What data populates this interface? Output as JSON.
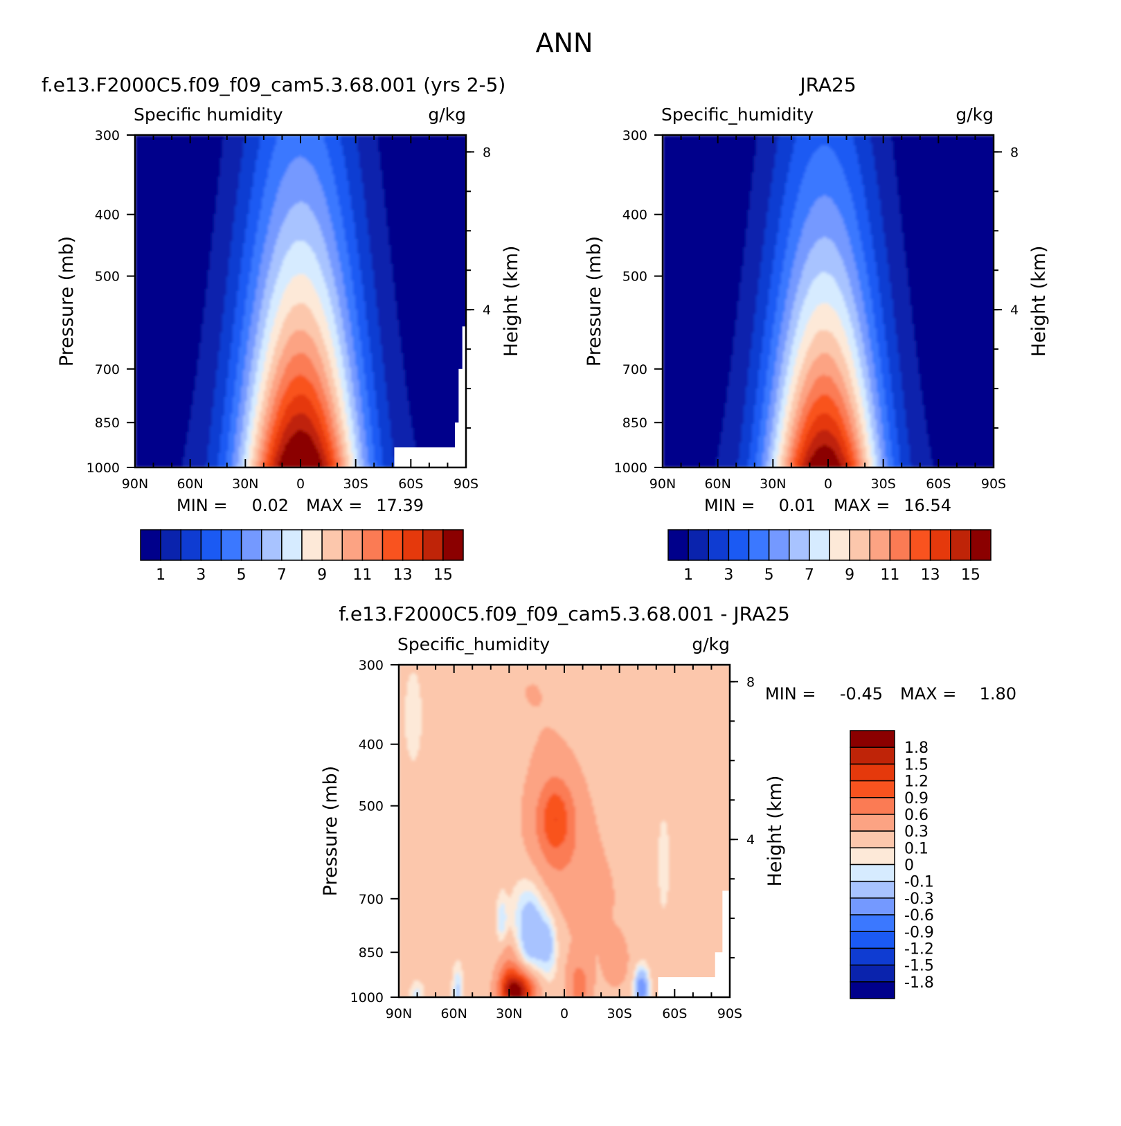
{
  "page": {
    "title": "ANN"
  },
  "colors": {
    "abs_scale": [
      "#00008b",
      "#0a23ad",
      "#0f3cd2",
      "#1b5af3",
      "#3b78ff",
      "#7499ff",
      "#a8c3ff",
      "#d6ebff",
      "#fde9d8",
      "#fcc7ac",
      "#fca383",
      "#fb7b54",
      "#f9531f",
      "#e5390c",
      "#bf2408",
      "#8b0000"
    ],
    "diff_scale": [
      "#00008b",
      "#0a23ad",
      "#0f3cd2",
      "#1b5af3",
      "#3b78ff",
      "#7499ff",
      "#a8c3ff",
      "#d6ebff",
      "#fde9d8",
      "#fcc7ac",
      "#fca383",
      "#fb7b54",
      "#f9531f",
      "#e5390c",
      "#bf2408",
      "#8b0000"
    ],
    "missing": "#ffffff"
  },
  "chart_data": [
    {
      "type": "heatmap",
      "title": "f.e13.F2000C5.f09_f09_cam5.3.68.001 (yrs 2-5)",
      "subtitle_left": "Specific humidity",
      "subtitle_right": "g/kg",
      "ylabel": "Pressure (mb)",
      "y2label": "Height (km)",
      "x_ticks": [
        "90N",
        "60N",
        "30N",
        "0",
        "30S",
        "60S",
        "90S"
      ],
      "y_ticks": [
        "300",
        "400",
        "500",
        "700",
        "850",
        "1000"
      ],
      "y2_ticks": [
        "8",
        "4"
      ],
      "stats": {
        "min_label": "MIN =",
        "min": "0.02",
        "max_label": "MAX =",
        "max": "17.39"
      },
      "colorbar_labels": [
        "1",
        "3",
        "5",
        "7",
        "9",
        "11",
        "13",
        "15"
      ],
      "peak": 17.39,
      "peak_lat": 0,
      "width": 32,
      "height": 0.9,
      "ymin": 0.02,
      "has_missing": true
    },
    {
      "type": "heatmap",
      "title": "JRA25",
      "subtitle_left": "Specific_humidity",
      "subtitle_right": "g/kg",
      "ylabel": "Pressure (mb)",
      "y2label": "Height (km)",
      "x_ticks": [
        "90N",
        "60N",
        "30N",
        "0",
        "30S",
        "60S",
        "90S"
      ],
      "y_ticks": [
        "300",
        "400",
        "500",
        "700",
        "850",
        "1000"
      ],
      "y2_ticks": [
        "8",
        "4"
      ],
      "stats": {
        "min_label": "MIN =",
        "min": "0.01",
        "max_label": "MAX =",
        "max": "16.54"
      },
      "colorbar_labels": [
        "1",
        "3",
        "5",
        "7",
        "9",
        "11",
        "13",
        "15"
      ],
      "peak": 16.54,
      "peak_lat": 2,
      "width": 30,
      "height": 0.82,
      "ymin": 0.01,
      "has_missing": false
    },
    {
      "type": "heatmap",
      "title": "f.e13.F2000C5.f09_f09_cam5.3.68.001 - JRA25",
      "subtitle_left": "Specific_humidity",
      "subtitle_right": "g/kg",
      "ylabel": "Pressure (mb)",
      "y2label": "Height (km)",
      "x_ticks": [
        "90N",
        "60N",
        "30N",
        "0",
        "30S",
        "60S",
        "90S"
      ],
      "y_ticks": [
        "300",
        "400",
        "500",
        "700",
        "850",
        "1000"
      ],
      "y2_ticks": [
        "8",
        "4"
      ],
      "stats": {
        "min_label": "MIN =",
        "min": "-0.45",
        "max_label": "MAX =",
        "max": "1.80"
      },
      "colorbar_labels": [
        "1.8",
        "1.5",
        "1.2",
        "0.9",
        "0.6",
        "0.3",
        "0.1",
        "0",
        "-0.1",
        "-0.3",
        "-0.6",
        "-0.9",
        "-1.2",
        "-1.5",
        "-1.8"
      ]
    }
  ]
}
